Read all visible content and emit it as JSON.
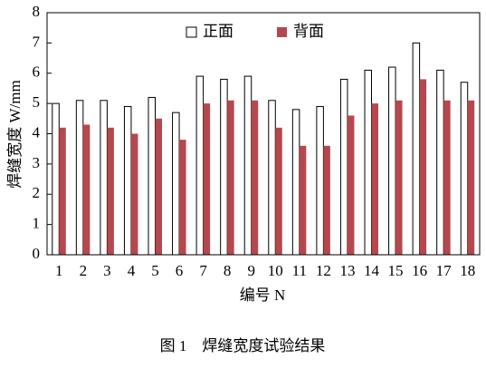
{
  "chart_data": {
    "type": "bar",
    "ylabel": "焊缝宽度 W/mm",
    "xlabel": "编号 N",
    "caption": "图 1　焊缝宽度试验结果",
    "categories": [
      "1",
      "2",
      "3",
      "4",
      "5",
      "6",
      "7",
      "8",
      "9",
      "10",
      "11",
      "12",
      "13",
      "14",
      "15",
      "16",
      "17",
      "18"
    ],
    "series": [
      {
        "name": "正面",
        "color": "#ffffff",
        "values": [
          5.0,
          5.1,
          5.1,
          4.9,
          5.2,
          4.7,
          5.9,
          5.8,
          5.9,
          5.1,
          4.8,
          4.9,
          5.8,
          6.1,
          6.2,
          7.0,
          6.1,
          5.7
        ]
      },
      {
        "name": "背面",
        "color": "#b5484f",
        "values": [
          4.2,
          4.3,
          4.2,
          4.0,
          4.5,
          3.8,
          5.0,
          5.1,
          5.1,
          4.2,
          3.6,
          3.6,
          4.6,
          5.0,
          5.1,
          5.8,
          5.1,
          5.1
        ]
      }
    ],
    "ylim": [
      0,
      8
    ],
    "yticks": [
      0,
      1,
      2,
      3,
      4,
      5,
      6,
      7,
      8
    ],
    "legend": "upper center"
  }
}
